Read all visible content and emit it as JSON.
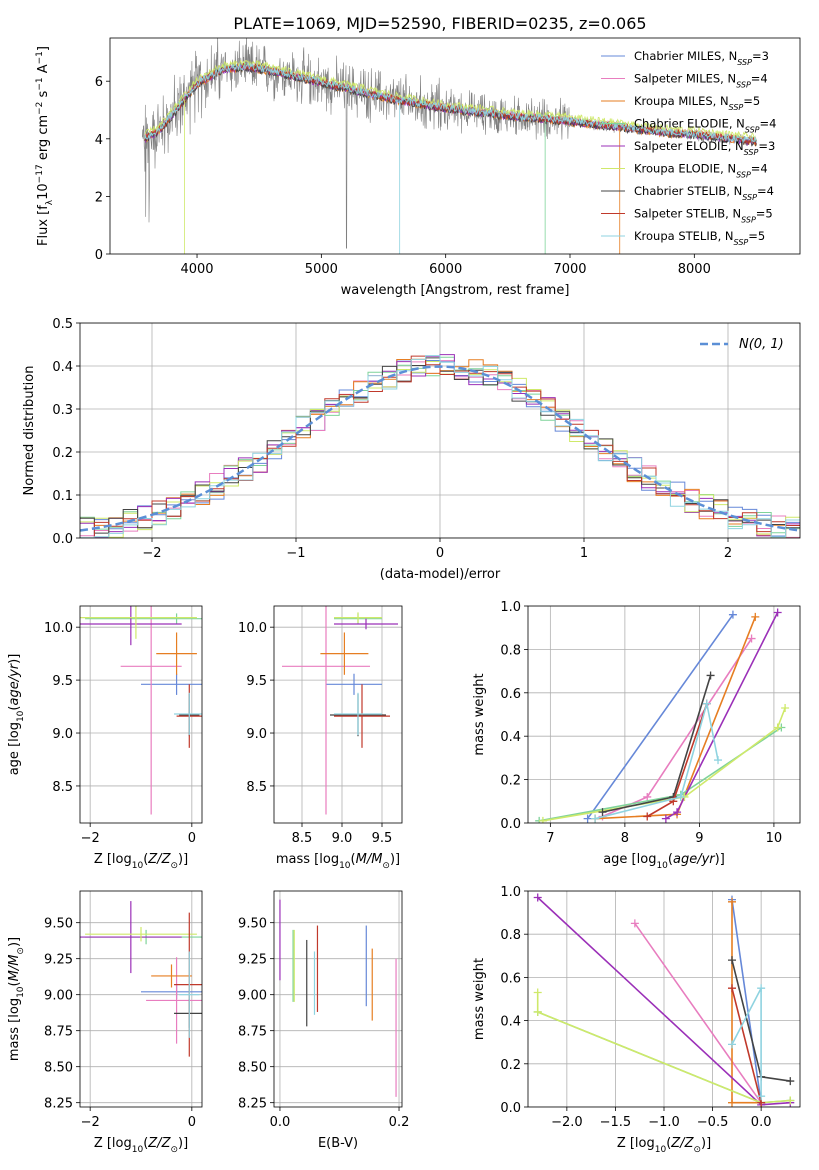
{
  "figure_title": "PLATE=1069, MJD=52590, FIBERID=0235, z=0.065",
  "series": [
    {
      "name": "Chabrier MILES, N_SSP=3",
      "imf": "Chabrier",
      "lib": "MILES",
      "nssp": "3",
      "color": "#6688d8"
    },
    {
      "name": "Salpeter MILES, N_SSP=4",
      "imf": "Salpeter",
      "lib": "MILES",
      "nssp": "4",
      "color": "#e87dbf"
    },
    {
      "name": "Kroupa MILES, N_SSP=5",
      "imf": "Kroupa",
      "lib": "MILES",
      "nssp": "5",
      "color": "#e67e22"
    },
    {
      "name": "Chabrier ELODIE, N_SSP=4",
      "imf": "Chabrier",
      "lib": "ELODIE",
      "nssp": "4",
      "color": "#7fd39a"
    },
    {
      "name": "Salpeter ELODIE, N_SSP=3",
      "imf": "Salpeter",
      "lib": "ELODIE",
      "nssp": "3",
      "color": "#9b30b8"
    },
    {
      "name": "Kroupa ELODIE, N_SSP=4",
      "imf": "Kroupa",
      "lib": "ELODIE",
      "nssp": "4",
      "color": "#cfe96a"
    },
    {
      "name": "Chabrier STELIB, N_SSP=4",
      "imf": "Chabrier",
      "lib": "STELIB",
      "nssp": "4",
      "color": "#444444"
    },
    {
      "name": "Salpeter STELIB, N_SSP=5",
      "imf": "Salpeter",
      "lib": "STELIB",
      "nssp": "5",
      "color": "#c0392b"
    },
    {
      "name": "Kroupa STELIB, N_SSP=5",
      "imf": "Kroupa",
      "lib": "STELIB",
      "nssp": "5",
      "color": "#8fd3e0"
    }
  ],
  "chart_data": [
    {
      "id": "spectrum",
      "type": "line",
      "xlabel": "wavelength [Angstrom, rest frame]",
      "ylabel": "Flux [f_λ 10^-17 erg cm^-2 s^-1 A^-1]",
      "xlim": [
        3300,
        8850
      ],
      "ylim": [
        0,
        7.5
      ],
      "xticks": [
        4000,
        5000,
        6000,
        7000,
        8000
      ],
      "yticks": [
        0,
        2,
        4,
        6
      ],
      "grid": false,
      "legend": "right",
      "data_color": "#808080",
      "model_continuum": {
        "x": [
          3580,
          3700,
          3850,
          4000,
          4200,
          4400,
          4600,
          4800,
          5000,
          5200,
          5400,
          5600,
          5800,
          6000,
          6200,
          6400,
          6600,
          6800,
          7000,
          7200,
          7400,
          7600,
          7800,
          8000,
          8200,
          8400,
          8500
        ],
        "y": [
          4.0,
          4.3,
          5.1,
          5.9,
          6.4,
          6.5,
          6.35,
          6.15,
          5.95,
          5.75,
          5.55,
          5.35,
          5.2,
          5.05,
          4.95,
          4.85,
          4.75,
          4.7,
          4.6,
          4.5,
          4.4,
          4.3,
          4.2,
          4.15,
          4.05,
          3.95,
          3.9
        ]
      },
      "model_offsets": [
        0,
        0.05,
        -0.03,
        0.04,
        -0.02,
        0.15,
        -0.04,
        0.02,
        0.03
      ]
    },
    {
      "id": "residuals",
      "type": "step",
      "xlabel": "(data-model)/error",
      "ylabel": "Normed distribution",
      "xlim": [
        -2.5,
        2.5
      ],
      "ylim": [
        0,
        0.5
      ],
      "xticks": [
        -2,
        -1,
        0,
        1,
        2
      ],
      "yticks": [
        0.0,
        0.1,
        0.2,
        0.3,
        0.4,
        0.5
      ],
      "grid": true,
      "legend": "top-right",
      "legend_label": "N(0, 1)",
      "bin_width": 0.1
    },
    {
      "id": "age_vs_Z",
      "type": "errorbar",
      "xlabel": "Z [log10(Z/Z⊙)]",
      "ylabel": "age [log10(age/yr)]",
      "xlim": [
        -2.2,
        0.2
      ],
      "ylim": [
        8.15,
        10.2
      ],
      "xticks": [
        -2,
        0
      ],
      "yticks": [
        8.5,
        9.0,
        9.5,
        10.0
      ],
      "grid": true,
      "points": [
        {
          "s": 0,
          "x": -0.3,
          "y": 9.46,
          "xerr": 0.7,
          "yerr": 0.1
        },
        {
          "s": 1,
          "x": -0.8,
          "y": 9.63,
          "xerr": 0.6,
          "yerr": 1.4
        },
        {
          "s": 2,
          "x": -0.3,
          "y": 9.75,
          "xerr": 0.4,
          "yerr": 0.2
        },
        {
          "s": 3,
          "x": -0.3,
          "y": 10.08,
          "xerr": 1.8,
          "yerr": 0.05
        },
        {
          "s": 4,
          "x": -1.2,
          "y": 10.03,
          "xerr": 1.0,
          "yerr": 0.2
        },
        {
          "s": 5,
          "x": -1.1,
          "y": 10.09,
          "xerr": 1.2,
          "yerr": 0.2
        },
        {
          "s": 6,
          "x": -0.05,
          "y": 9.17,
          "xerr": 0.2,
          "yerr": 0.2
        },
        {
          "s": 7,
          "x": -0.05,
          "y": 9.16,
          "xerr": 0.25,
          "yerr": 0.3
        },
        {
          "s": 8,
          "x": -0.05,
          "y": 9.18,
          "xerr": 0.3,
          "yerr": 0.2
        }
      ]
    },
    {
      "id": "age_vs_mass",
      "type": "errorbar",
      "xlabel": "mass [log10(M/M⊙)]",
      "ylabel": "",
      "xlim": [
        8.15,
        9.75
      ],
      "ylim": [
        8.15,
        10.2
      ],
      "xticks": [
        8.5,
        9.0,
        9.5
      ],
      "yticks": [
        8.5,
        9.0,
        9.5,
        10.0
      ],
      "grid": true,
      "points": [
        {
          "s": 0,
          "x": 9.15,
          "y": 9.46,
          "xerr": 0.35,
          "yerr": 0.1
        },
        {
          "s": 1,
          "x": 8.8,
          "y": 9.63,
          "xerr": 0.55,
          "yerr": 1.4
        },
        {
          "s": 2,
          "x": 9.03,
          "y": 9.75,
          "xerr": 0.3,
          "yerr": 0.2
        },
        {
          "s": 3,
          "x": 9.2,
          "y": 10.08,
          "xerr": 0.3,
          "yerr": 0.05
        },
        {
          "s": 4,
          "x": 9.3,
          "y": 10.03,
          "xerr": 0.4,
          "yerr": 0.05
        },
        {
          "s": 5,
          "x": 9.2,
          "y": 10.09,
          "xerr": 0.3,
          "yerr": 0.05
        },
        {
          "s": 6,
          "x": 9.2,
          "y": 9.17,
          "xerr": 0.35,
          "yerr": 0.2
        },
        {
          "s": 7,
          "x": 9.25,
          "y": 9.16,
          "xerr": 0.35,
          "yerr": 0.3
        },
        {
          "s": 8,
          "x": 9.2,
          "y": 9.18,
          "xerr": 0.3,
          "yerr": 0.2
        }
      ]
    },
    {
      "id": "weight_vs_age",
      "type": "line",
      "xlabel": "age [log10(age/yr)]",
      "ylabel": "mass weight",
      "xlim": [
        6.7,
        10.35
      ],
      "ylim": [
        0,
        1.0
      ],
      "xticks": [
        7,
        8,
        9,
        10
      ],
      "yticks": [
        0.0,
        0.2,
        0.4,
        0.6,
        0.8,
        1.0
      ],
      "grid": true,
      "series": [
        {
          "s": 0,
          "x": [
            7.5,
            9.45
          ],
          "y": [
            0.02,
            0.96
          ]
        },
        {
          "s": 1,
          "x": [
            7.7,
            8.3,
            9.7
          ],
          "y": [
            0.03,
            0.12,
            0.85
          ]
        },
        {
          "s": 2,
          "x": [
            7.6,
            8.7,
            9.75
          ],
          "y": [
            0.02,
            0.04,
            0.95
          ]
        },
        {
          "s": 3,
          "x": [
            6.85,
            8.75,
            10.1
          ],
          "y": [
            0.01,
            0.13,
            0.44
          ]
        },
        {
          "s": 4,
          "x": [
            8.55,
            8.7,
            10.05
          ],
          "y": [
            0.02,
            0.05,
            0.97
          ]
        },
        {
          "s": 5,
          "x": [
            6.9,
            8.8,
            10.05,
            10.15
          ],
          "y": [
            0.01,
            0.12,
            0.44,
            0.53
          ]
        },
        {
          "s": 6,
          "x": [
            7.7,
            8.65,
            9.15
          ],
          "y": [
            0.05,
            0.12,
            0.68
          ]
        },
        {
          "s": 7,
          "x": [
            8.3,
            8.65,
            9.1
          ],
          "y": [
            0.03,
            0.1,
            0.55
          ]
        },
        {
          "s": 8,
          "x": [
            7.6,
            8.75,
            9.1,
            9.25
          ],
          "y": [
            0.02,
            0.12,
            0.55,
            0.29
          ]
        }
      ]
    },
    {
      "id": "mass_vs_Z",
      "type": "errorbar",
      "xlabel": "Z [log10(Z/Z⊙)]",
      "ylabel": "mass [log10(M/M⊙)]",
      "xlim": [
        -2.2,
        0.2
      ],
      "ylim": [
        8.22,
        9.72
      ],
      "xticks": [
        -2,
        0
      ],
      "yticks": [
        8.25,
        8.5,
        8.75,
        9.0,
        9.25,
        9.5
      ],
      "grid": true,
      "points": [
        {
          "s": 0,
          "x": -0.3,
          "y": 9.02,
          "xerr": 0.7,
          "yerr": 0.05
        },
        {
          "s": 1,
          "x": -0.3,
          "y": 8.96,
          "xerr": 0.6,
          "yerr": 0.3
        },
        {
          "s": 2,
          "x": -0.4,
          "y": 9.13,
          "xerr": 0.4,
          "yerr": 0.08
        },
        {
          "s": 3,
          "x": -0.9,
          "y": 9.4,
          "xerr": 1.2,
          "yerr": 0.05
        },
        {
          "s": 4,
          "x": -1.2,
          "y": 9.4,
          "xerr": 1.0,
          "yerr": 0.25
        },
        {
          "s": 5,
          "x": -1.0,
          "y": 9.42,
          "xerr": 1.1,
          "yerr": 0.05
        },
        {
          "s": 6,
          "x": -0.05,
          "y": 8.87,
          "xerr": 0.3,
          "yerr": 0.1
        },
        {
          "s": 7,
          "x": -0.05,
          "y": 9.07,
          "xerr": 0.3,
          "yerr": 0.5
        },
        {
          "s": 8,
          "x": -0.05,
          "y": 9.0,
          "xerr": 0.2,
          "yerr": 0.3
        }
      ]
    },
    {
      "id": "mass_vs_EBV",
      "type": "errorbar",
      "xlabel": "E(B-V)",
      "ylabel": "",
      "xlim": [
        -0.01,
        0.205
      ],
      "ylim": [
        8.22,
        9.72
      ],
      "xticks": [
        0.0,
        0.2
      ],
      "yticks": [
        8.25,
        8.5,
        8.75,
        9.0,
        9.25,
        9.5
      ],
      "grid": true,
      "points": [
        {
          "s": 0,
          "x": 0.145,
          "y": 9.2,
          "yerr": 0.28
        },
        {
          "s": 1,
          "x": 0.195,
          "y": 8.77,
          "yerr": 0.48
        },
        {
          "s": 2,
          "x": 0.155,
          "y": 9.07,
          "yerr": 0.25
        },
        {
          "s": 3,
          "x": 0.022,
          "y": 9.2,
          "yerr": 0.25
        },
        {
          "s": 4,
          "x": 0.0,
          "y": 9.38,
          "yerr": 0.28
        },
        {
          "s": 5,
          "x": 0.024,
          "y": 9.2,
          "yerr": 0.25
        },
        {
          "s": 6,
          "x": 0.045,
          "y": 9.08,
          "yerr": 0.3
        },
        {
          "s": 7,
          "x": 0.063,
          "y": 9.18,
          "yerr": 0.3
        },
        {
          "s": 8,
          "x": 0.058,
          "y": 9.08,
          "yerr": 0.22
        }
      ]
    },
    {
      "id": "weight_vs_Z",
      "type": "line",
      "xlabel": "Z [log10(Z/Z⊙)]",
      "ylabel": "mass weight",
      "xlim": [
        -2.4,
        0.4
      ],
      "ylim": [
        0,
        1.0
      ],
      "xticks": [
        -2.0,
        -1.5,
        -1.0,
        -0.5,
        0.0
      ],
      "yticks": [
        0.0,
        0.2,
        0.4,
        0.6,
        0.8,
        1.0
      ],
      "grid": true,
      "series": [
        {
          "s": 0,
          "x": [
            -0.3,
            0.0
          ],
          "y": [
            0.96,
            0.02
          ]
        },
        {
          "s": 1,
          "x": [
            -1.3,
            0.0
          ],
          "y": [
            0.85,
            0.02
          ]
        },
        {
          "s": 2,
          "x": [
            -0.3,
            -0.3,
            0.0
          ],
          "y": [
            0.95,
            0.02,
            0.02
          ]
        },
        {
          "s": 3,
          "x": [
            -2.3,
            0.0,
            0.3
          ],
          "y": [
            0.44,
            0.02,
            0.03
          ]
        },
        {
          "s": 4,
          "x": [
            -2.3,
            0.0,
            0.3
          ],
          "y": [
            0.97,
            0.01,
            0.02
          ]
        },
        {
          "s": 5,
          "x": [
            -2.3,
            -2.3,
            0.0,
            0.3
          ],
          "y": [
            0.53,
            0.44,
            0.02,
            0.03
          ]
        },
        {
          "s": 6,
          "x": [
            -0.3,
            0.0,
            0.3
          ],
          "y": [
            0.68,
            0.14,
            0.12
          ]
        },
        {
          "s": 7,
          "x": [
            -0.3,
            0.0
          ],
          "y": [
            0.55,
            0.02
          ]
        },
        {
          "s": 8,
          "x": [
            -0.3,
            0.0,
            0.0
          ],
          "y": [
            0.29,
            0.55,
            0.05
          ]
        }
      ]
    }
  ]
}
